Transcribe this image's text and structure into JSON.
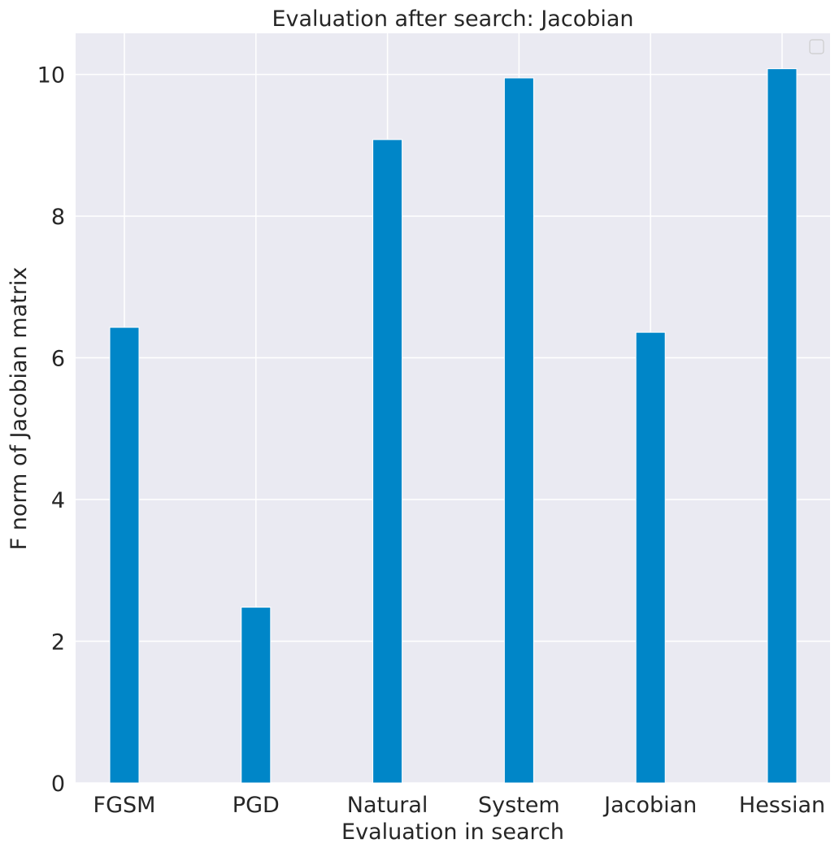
{
  "chart_data": {
    "type": "bar",
    "title": "Evaluation after search: Jacobian",
    "xlabel": "Evaluation in search",
    "ylabel": "F norm of Jacobian matrix",
    "categories": [
      "FGSM",
      "PGD",
      "Natural",
      "System",
      "Jacobian",
      "Hessian"
    ],
    "values": [
      6.43,
      2.48,
      9.08,
      9.95,
      6.36,
      10.08
    ],
    "ylim": [
      0,
      10.58
    ],
    "yticks": [
      0,
      2,
      4,
      6,
      8,
      10
    ],
    "grid": true,
    "legend": "top-right",
    "colors": {
      "bar": "#0086c8",
      "background": "#eaeaf2",
      "grid": "#ffffff"
    }
  }
}
